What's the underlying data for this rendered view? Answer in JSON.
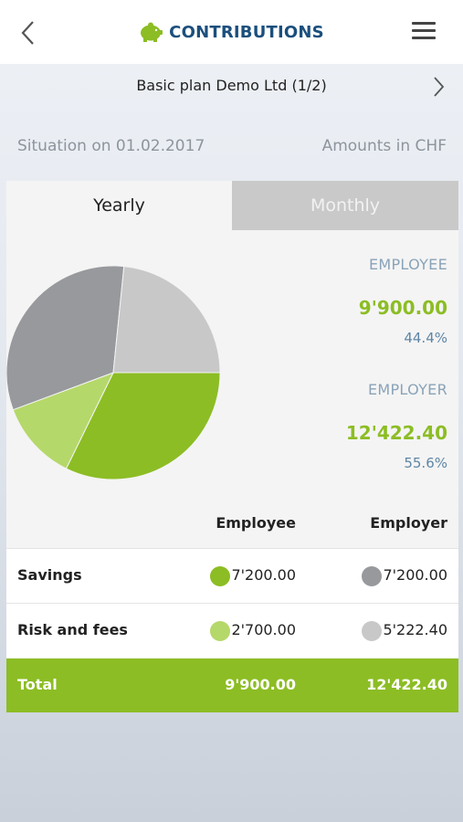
{
  "header": {
    "title": "CONTRIBUTIONS",
    "back_icon": "chevron-left-icon",
    "menu_icon": "hamburger-menu-icon",
    "title_icon": "piggy-bank-icon"
  },
  "plan": {
    "name": "Basic plan Demo Ltd (1/2)",
    "next_icon": "chevron-right-icon"
  },
  "info": {
    "situation": "Situation on 01.02.2017",
    "currency_note": "Amounts in CHF"
  },
  "tabs": {
    "yearly": "Yearly",
    "monthly": "Monthly",
    "active": "yearly"
  },
  "summary": {
    "employee_label": "EMPLOYEE",
    "employee_amount": "9'900.00",
    "employee_pct": "44.4%",
    "employer_label": "EMPLOYER",
    "employer_amount": "12'422.40",
    "employer_pct": "55.6%"
  },
  "table": {
    "col_employee": "Employee",
    "col_employer": "Employer",
    "rows": [
      {
        "label": "Savings",
        "employee": "7'200.00",
        "employer": "7'200.00"
      },
      {
        "label": "Risk and fees",
        "employee": "2'700.00",
        "employer": "5'222.40"
      }
    ],
    "total_label": "Total",
    "total_employee": "9'900.00",
    "total_employer": "12'422.40"
  },
  "colors": {
    "employee_savings": "#8cbd24",
    "employee_risk": "#b5d86a",
    "employer_savings": "#97999c",
    "employer_risk": "#c8c8c8",
    "brand_blue": "#1b4f7d"
  },
  "chart_data": {
    "type": "pie",
    "slices": [
      {
        "name": "Savings",
        "group": "Employee",
        "value": 7200.0,
        "color": "#8cbd24"
      },
      {
        "name": "Risk and fees",
        "group": "Employee",
        "value": 2700.0,
        "color": "#b5d86a"
      },
      {
        "name": "Savings",
        "group": "Employer",
        "value": 7200.0,
        "color": "#97999c"
      },
      {
        "name": "Risk and fees",
        "group": "Employer",
        "value": 5222.4,
        "color": "#c8c8c8"
      }
    ]
  }
}
